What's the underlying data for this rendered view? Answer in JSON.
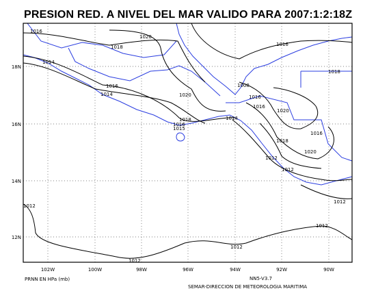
{
  "title": "PRESION RED. A NIVEL DEL MAR VALIDO PARA 2007:1:2:18Z",
  "lon_labels": [
    "102W",
    "100W",
    "98W",
    "96W",
    "94W",
    "92W",
    "90W"
  ],
  "lat_labels": [
    "18N",
    "16N",
    "14N",
    "12N"
  ],
  "contour_labels": [
    "1016",
    "1020",
    "1018",
    "1014",
    "1016",
    "1018",
    "1016",
    "1014",
    "1020",
    "1008",
    "1016",
    "1016",
    "1020",
    "1018",
    "1016",
    "1015",
    "1014",
    "1016",
    "1018",
    "1020",
    "1012",
    "1012",
    "1012",
    "1012",
    "1012",
    "1012",
    "1012"
  ],
  "footer": {
    "units": "PRNN EN HPa (mb)",
    "version": "NN5-V3.7",
    "credit": "SEMAR-DIRECCION DE METEOROLOGIA MARITIMA"
  }
}
